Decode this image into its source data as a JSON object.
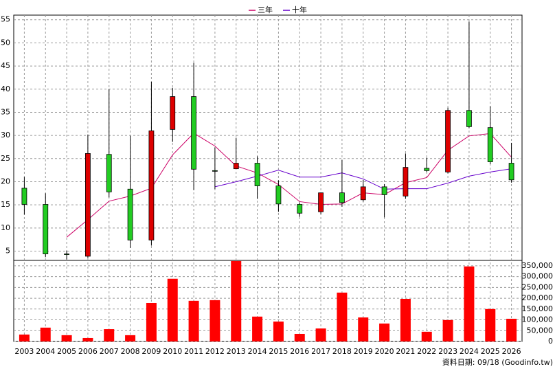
{
  "chart_data": {
    "type": "candlestick",
    "categories": [
      "2003",
      "2004",
      "2005",
      "2006",
      "2007",
      "2008",
      "2009",
      "2010",
      "2011",
      "2012",
      "2013",
      "2014",
      "2015",
      "2016",
      "2017",
      "2018",
      "2019",
      "2020",
      "2021",
      "2022",
      "2023",
      "2024",
      "2025",
      "2026"
    ],
    "open": [
      18.6,
      15.1,
      4.4,
      3.9,
      25.9,
      18.4,
      7.4,
      31.3,
      38.4,
      22.4,
      22.8,
      24,
      19.1,
      15.1,
      13.5,
      17.6,
      16.1,
      18.9,
      16.9,
      22.9,
      22.1,
      35.4,
      31.7,
      24
    ],
    "high": [
      21,
      17.5,
      5.1,
      30.2,
      40,
      29.9,
      41.6,
      40.3,
      45.7,
      27.4,
      29.5,
      25.5,
      20.3,
      15.5,
      17.6,
      24.7,
      20.4,
      19.5,
      26.1,
      25.2,
      36,
      54.6,
      36.3,
      28.4
    ],
    "low": [
      12.9,
      3.7,
      3.2,
      3.5,
      16.6,
      5.7,
      6.2,
      28.6,
      18.2,
      18.4,
      22.8,
      16.3,
      13.5,
      12.4,
      13,
      14.6,
      15.7,
      12.3,
      16.3,
      22.1,
      21.8,
      31.6,
      23.8,
      19.8
    ],
    "close": [
      15.1,
      4.4,
      4.3,
      26.1,
      17.8,
      7.4,
      31,
      38.4,
      22.7,
      22.3,
      24,
      19.1,
      15.2,
      13.2,
      17.6,
      15.5,
      18.9,
      17.2,
      23.1,
      22.4,
      35.4,
      31.9,
      24.3,
      20.4
    ],
    "up_color": "#dd0000",
    "down_color": "#22cc22",
    "ylim": [
      3,
      56
    ],
    "yticks": [
      5,
      10,
      15,
      20,
      25,
      30,
      35,
      40,
      45,
      50,
      55
    ],
    "grid": true,
    "series": [
      {
        "name": "三年",
        "color": "#cc0066",
        "values": [
          null,
          null,
          8.0,
          11.8,
          15.8,
          16.9,
          18.6,
          25.8,
          30.5,
          27.7,
          23.4,
          21.9,
          19.4,
          15.7,
          15.1,
          15.2,
          17.6,
          17.2,
          19.8,
          20.9,
          26.8,
          29.9,
          30.4,
          25.3
        ]
      },
      {
        "name": "十年",
        "color": "#6600cc",
        "values": [
          null,
          null,
          null,
          null,
          null,
          null,
          null,
          null,
          null,
          18.9,
          20,
          21.2,
          22.5,
          21,
          21,
          21.9,
          20.6,
          18.4,
          18.5,
          18.5,
          19.7,
          21.2,
          22.1,
          22.8
        ]
      }
    ],
    "volume": {
      "color": "#ff0000",
      "values": [
        32000,
        64000,
        29000,
        16000,
        57000,
        29000,
        178000,
        290000,
        188000,
        191000,
        372000,
        115000,
        92000,
        35000,
        60000,
        226000,
        111000,
        83000,
        197000,
        45000,
        99000,
        347000,
        150000,
        105000
      ],
      "ylim": [
        0,
        375000
      ],
      "yticks": [
        0,
        {
          "value": 50000,
          "label": "50,000"
        },
        {
          "value": 100000,
          "label": "100,000"
        },
        {
          "value": 150000,
          "label": "150,000"
        },
        {
          "value": 200000,
          "label": "200,000"
        },
        {
          "value": 250000,
          "label": "250,000"
        },
        {
          "value": 300000,
          "label": "300,000"
        },
        {
          "value": 350000,
          "label": "350,000"
        }
      ]
    },
    "footnote": "資料日期: 09/18 (Goodinfo.tw)"
  }
}
